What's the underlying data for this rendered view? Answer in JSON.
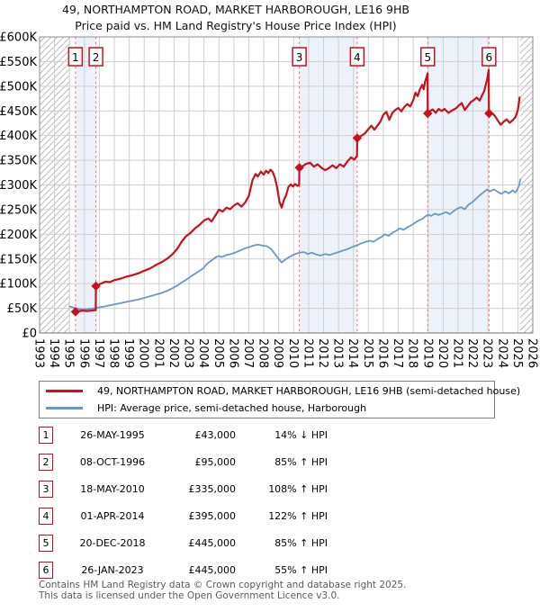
{
  "header": {
    "title": "49, NORTHAMPTON ROAD, MARKET HARBOROUGH, LE16 9HB",
    "subtitle": "Price paid vs. HM Land Registry's House Price Index (HPI)"
  },
  "colors": {
    "price_line": "#c8101e",
    "hpi_line": "#6b97c7",
    "sale_dash": "#ff6b6b",
    "ownership_band": "#edf2fa",
    "grid": "#cfcfcf",
    "plot_border": "#8c8c8c",
    "axis_line": "#707070",
    "hatch_line": "#b4b4b4",
    "marker_box_border": "#c8101e",
    "footer_text": "#5a5a5a"
  },
  "chart_data": {
    "type": "line",
    "title": "Price paid vs. HM Land Registry's House Price Index (HPI)",
    "xlabel": "",
    "ylabel": "",
    "x_axis": {
      "min": 1993,
      "max": 2026,
      "tick_years": [
        1993,
        1994,
        1995,
        1996,
        1997,
        1998,
        1999,
        2000,
        2001,
        2002,
        2003,
        2004,
        2005,
        2006,
        2007,
        2008,
        2009,
        2010,
        2011,
        2012,
        2013,
        2014,
        2015,
        2016,
        2017,
        2018,
        2019,
        2020,
        2021,
        2022,
        2023,
        2024,
        2025,
        2026
      ]
    },
    "y_axis": {
      "min": 0,
      "max": 600,
      "step": 50,
      "unit": "£K",
      "ticks": [
        [
          0,
          "£0"
        ],
        [
          50,
          "£50K"
        ],
        [
          100,
          "£100K"
        ],
        [
          150,
          "£150K"
        ],
        [
          200,
          "£200K"
        ],
        [
          250,
          "£250K"
        ],
        [
          300,
          "£300K"
        ],
        [
          350,
          "£350K"
        ],
        [
          400,
          "£400K"
        ],
        [
          450,
          "£450K"
        ],
        [
          500,
          "£500K"
        ],
        [
          550,
          "£550K"
        ],
        [
          600,
          "£600K"
        ]
      ]
    },
    "grid": true,
    "hpi_unavailable_hatch": [
      [
        1993,
        1995.0
      ],
      [
        2025.15,
        2026
      ]
    ],
    "ownership_bands": [
      [
        1995.4,
        1996.77
      ],
      [
        2010.38,
        2014.25
      ],
      [
        2018.97,
        2023.07
      ]
    ],
    "sales": [
      {
        "label": "1",
        "year": 1995.4,
        "price_k": 43
      },
      {
        "label": "2",
        "year": 1996.77,
        "price_k": 95
      },
      {
        "label": "3",
        "year": 2010.38,
        "price_k": 335
      },
      {
        "label": "4",
        "year": 2014.25,
        "price_k": 395
      },
      {
        "label": "5",
        "year": 2018.97,
        "price_k": 445
      },
      {
        "label": "6",
        "year": 2023.07,
        "price_k": 445
      }
    ],
    "series": [
      {
        "name": "49, NORTHAMPTON ROAD, MARKET HARBOROUGH, LE16 9HB (semi-detached house)",
        "color": "#c8101e",
        "width": 2.2,
        "points": [
          [
            1995.4,
            43
          ],
          [
            1995.65,
            44.5
          ],
          [
            1995.9,
            45.5
          ],
          [
            1996.15,
            44.5
          ],
          [
            1996.45,
            45.5
          ],
          [
            1996.76,
            46.5
          ],
          [
            1996.77,
            95
          ],
          [
            1997.1,
            100
          ],
          [
            1997.4,
            104
          ],
          [
            1997.7,
            103
          ],
          [
            1998.0,
            107
          ],
          [
            1998.4,
            110
          ],
          [
            1998.8,
            114
          ],
          [
            1999.2,
            117
          ],
          [
            1999.6,
            121
          ],
          [
            2000.0,
            126
          ],
          [
            2000.4,
            131
          ],
          [
            2000.8,
            138
          ],
          [
            2001.2,
            144
          ],
          [
            2001.6,
            152
          ],
          [
            2001.9,
            160
          ],
          [
            2002.2,
            170
          ],
          [
            2002.5,
            185
          ],
          [
            2002.8,
            196
          ],
          [
            2003.1,
            203
          ],
          [
            2003.4,
            212
          ],
          [
            2003.7,
            219
          ],
          [
            2004.0,
            228
          ],
          [
            2004.3,
            232
          ],
          [
            2004.5,
            226
          ],
          [
            2004.8,
            240
          ],
          [
            2005.0,
            250
          ],
          [
            2005.25,
            246
          ],
          [
            2005.5,
            254
          ],
          [
            2005.75,
            251
          ],
          [
            2006.0,
            258
          ],
          [
            2006.25,
            263
          ],
          [
            2006.5,
            256
          ],
          [
            2006.75,
            264
          ],
          [
            2007.0,
            278
          ],
          [
            2007.25,
            310
          ],
          [
            2007.45,
            322
          ],
          [
            2007.6,
            317
          ],
          [
            2007.8,
            327
          ],
          [
            2008.0,
            321
          ],
          [
            2008.15,
            329
          ],
          [
            2008.3,
            324
          ],
          [
            2008.45,
            331
          ],
          [
            2008.6,
            326
          ],
          [
            2008.75,
            314
          ],
          [
            2008.9,
            294
          ],
          [
            2009.05,
            266
          ],
          [
            2009.2,
            254
          ],
          [
            2009.35,
            270
          ],
          [
            2009.5,
            280
          ],
          [
            2009.65,
            296
          ],
          [
            2009.8,
            301
          ],
          [
            2009.95,
            297
          ],
          [
            2010.1,
            302
          ],
          [
            2010.25,
            298
          ],
          [
            2010.37,
            300
          ],
          [
            2010.38,
            335
          ],
          [
            2010.6,
            338
          ],
          [
            2010.85,
            343
          ],
          [
            2011.1,
            345
          ],
          [
            2011.35,
            337
          ],
          [
            2011.6,
            342
          ],
          [
            2011.85,
            335
          ],
          [
            2012.1,
            330
          ],
          [
            2012.35,
            334
          ],
          [
            2012.6,
            340
          ],
          [
            2012.85,
            334
          ],
          [
            2013.1,
            342
          ],
          [
            2013.35,
            337
          ],
          [
            2013.6,
            348
          ],
          [
            2013.85,
            356
          ],
          [
            2014.05,
            351
          ],
          [
            2014.24,
            359
          ],
          [
            2014.25,
            395
          ],
          [
            2014.5,
            399
          ],
          [
            2014.75,
            404
          ],
          [
            2015.0,
            413
          ],
          [
            2015.2,
            420
          ],
          [
            2015.4,
            412
          ],
          [
            2015.6,
            420
          ],
          [
            2015.8,
            428
          ],
          [
            2016.0,
            442
          ],
          [
            2016.2,
            448
          ],
          [
            2016.4,
            432
          ],
          [
            2016.6,
            446
          ],
          [
            2016.8,
            452
          ],
          [
            2017.0,
            456
          ],
          [
            2017.2,
            449
          ],
          [
            2017.4,
            458
          ],
          [
            2017.6,
            464
          ],
          [
            2017.8,
            459
          ],
          [
            2018.0,
            472
          ],
          [
            2018.15,
            487
          ],
          [
            2018.3,
            480
          ],
          [
            2018.45,
            494
          ],
          [
            2018.6,
            503
          ],
          [
            2018.7,
            494
          ],
          [
            2018.8,
            510
          ],
          [
            2018.9,
            519
          ],
          [
            2018.96,
            526
          ],
          [
            2018.97,
            445
          ],
          [
            2019.1,
            449
          ],
          [
            2019.3,
            453
          ],
          [
            2019.5,
            446
          ],
          [
            2019.7,
            454
          ],
          [
            2019.9,
            450
          ],
          [
            2020.1,
            454
          ],
          [
            2020.35,
            446
          ],
          [
            2020.6,
            451
          ],
          [
            2020.85,
            455
          ],
          [
            2021.05,
            461
          ],
          [
            2021.25,
            466
          ],
          [
            2021.45,
            452
          ],
          [
            2021.65,
            460
          ],
          [
            2021.85,
            468
          ],
          [
            2022.05,
            472
          ],
          [
            2022.25,
            477
          ],
          [
            2022.45,
            471
          ],
          [
            2022.6,
            481
          ],
          [
            2022.75,
            490
          ],
          [
            2022.85,
            503
          ],
          [
            2022.95,
            515
          ],
          [
            2023.05,
            533
          ],
          [
            2023.07,
            445
          ],
          [
            2023.25,
            446
          ],
          [
            2023.45,
            440
          ],
          [
            2023.65,
            431
          ],
          [
            2023.85,
            422
          ],
          [
            2024.05,
            428
          ],
          [
            2024.25,
            433
          ],
          [
            2024.45,
            426
          ],
          [
            2024.65,
            431
          ],
          [
            2024.85,
            438
          ],
          [
            2025.0,
            452
          ],
          [
            2025.12,
            477
          ]
        ]
      },
      {
        "name": "HPI: Average price, semi-detached house, Harborough",
        "color": "#6b97c7",
        "width": 1.8,
        "points": [
          [
            1995.0,
            54
          ],
          [
            1995.3,
            51
          ],
          [
            1995.6,
            49
          ],
          [
            1995.9,
            48
          ],
          [
            1996.2,
            48.5
          ],
          [
            1996.5,
            49.5
          ],
          [
            1996.8,
            51
          ],
          [
            1997.1,
            52.5
          ],
          [
            1997.4,
            54
          ],
          [
            1997.7,
            56
          ],
          [
            1998.0,
            58
          ],
          [
            1998.35,
            60
          ],
          [
            1998.7,
            62.5
          ],
          [
            1999.05,
            64.5
          ],
          [
            1999.4,
            66.5
          ],
          [
            1999.75,
            69
          ],
          [
            2000.1,
            72
          ],
          [
            2000.45,
            75
          ],
          [
            2000.8,
            78
          ],
          [
            2001.15,
            81
          ],
          [
            2001.5,
            85
          ],
          [
            2001.85,
            90
          ],
          [
            2002.2,
            96
          ],
          [
            2002.55,
            103
          ],
          [
            2002.9,
            110
          ],
          [
            2003.25,
            117
          ],
          [
            2003.6,
            124
          ],
          [
            2003.95,
            131
          ],
          [
            2004.2,
            140
          ],
          [
            2004.5,
            147
          ],
          [
            2004.8,
            154
          ],
          [
            2005.0,
            156
          ],
          [
            2005.2,
            154
          ],
          [
            2005.5,
            158
          ],
          [
            2005.8,
            160
          ],
          [
            2006.1,
            163
          ],
          [
            2006.4,
            167
          ],
          [
            2006.7,
            171
          ],
          [
            2007.0,
            174
          ],
          [
            2007.3,
            177
          ],
          [
            2007.6,
            179
          ],
          [
            2007.9,
            177
          ],
          [
            2008.2,
            176
          ],
          [
            2008.5,
            170
          ],
          [
            2008.8,
            158
          ],
          [
            2009.0,
            150
          ],
          [
            2009.2,
            143
          ],
          [
            2009.45,
            149
          ],
          [
            2009.7,
            154
          ],
          [
            2009.95,
            158
          ],
          [
            2010.2,
            161
          ],
          [
            2010.45,
            163
          ],
          [
            2010.7,
            164
          ],
          [
            2010.95,
            160
          ],
          [
            2011.2,
            163
          ],
          [
            2011.5,
            159
          ],
          [
            2011.8,
            157
          ],
          [
            2012.1,
            160
          ],
          [
            2012.4,
            158
          ],
          [
            2012.7,
            161
          ],
          [
            2013.0,
            164
          ],
          [
            2013.3,
            167
          ],
          [
            2013.6,
            170
          ],
          [
            2013.9,
            174
          ],
          [
            2014.25,
            178
          ],
          [
            2014.55,
            182
          ],
          [
            2014.85,
            185
          ],
          [
            2015.1,
            187
          ],
          [
            2015.35,
            185
          ],
          [
            2015.6,
            190
          ],
          [
            2015.85,
            194
          ],
          [
            2016.1,
            200
          ],
          [
            2016.35,
            197
          ],
          [
            2016.6,
            203
          ],
          [
            2016.85,
            207
          ],
          [
            2017.1,
            212
          ],
          [
            2017.35,
            209
          ],
          [
            2017.6,
            214
          ],
          [
            2017.85,
            218
          ],
          [
            2018.1,
            223
          ],
          [
            2018.35,
            228
          ],
          [
            2018.6,
            231
          ],
          [
            2018.8,
            236
          ],
          [
            2019.0,
            240
          ],
          [
            2019.2,
            237
          ],
          [
            2019.45,
            242
          ],
          [
            2019.7,
            239
          ],
          [
            2019.95,
            242
          ],
          [
            2020.2,
            245
          ],
          [
            2020.45,
            241
          ],
          [
            2020.7,
            247
          ],
          [
            2020.95,
            252
          ],
          [
            2021.2,
            255
          ],
          [
            2021.45,
            251
          ],
          [
            2021.7,
            260
          ],
          [
            2021.95,
            265
          ],
          [
            2022.2,
            272
          ],
          [
            2022.45,
            279
          ],
          [
            2022.7,
            285
          ],
          [
            2022.95,
            291
          ],
          [
            2023.15,
            287
          ],
          [
            2023.4,
            291
          ],
          [
            2023.65,
            286
          ],
          [
            2023.9,
            282
          ],
          [
            2024.15,
            287
          ],
          [
            2024.4,
            283
          ],
          [
            2024.65,
            289
          ],
          [
            2024.85,
            285
          ],
          [
            2025.0,
            293
          ],
          [
            2025.1,
            300
          ],
          [
            2025.15,
            311
          ]
        ]
      }
    ]
  },
  "legend": {
    "entries": [
      {
        "label": "49, NORTHAMPTON ROAD, MARKET HARBOROUGH, LE16 9HB (semi-detached house)",
        "color": "#c8101e"
      },
      {
        "label": "HPI: Average price, semi-detached house, Harborough",
        "color": "#6b97c7"
      }
    ]
  },
  "sales_table": {
    "rows": [
      {
        "number": "1",
        "date": "26-MAY-1995",
        "price": "£43,000",
        "vs_hpi": "14% ↓ HPI"
      },
      {
        "number": "2",
        "date": "08-OCT-1996",
        "price": "£95,000",
        "vs_hpi": "85% ↑ HPI"
      },
      {
        "number": "3",
        "date": "18-MAY-2010",
        "price": "£335,000",
        "vs_hpi": "108% ↑ HPI"
      },
      {
        "number": "4",
        "date": "01-APR-2014",
        "price": "£395,000",
        "vs_hpi": "122% ↑ HPI"
      },
      {
        "number": "5",
        "date": "20-DEC-2018",
        "price": "£445,000",
        "vs_hpi": "85% ↑ HPI"
      },
      {
        "number": "6",
        "date": "26-JAN-2023",
        "price": "£445,000",
        "vs_hpi": "55% ↑ HPI"
      }
    ]
  },
  "footer": {
    "line1": "Contains HM Land Registry data © Crown copyright and database right 2025.",
    "line2": "This data is licensed under the Open Government Licence v3.0."
  }
}
